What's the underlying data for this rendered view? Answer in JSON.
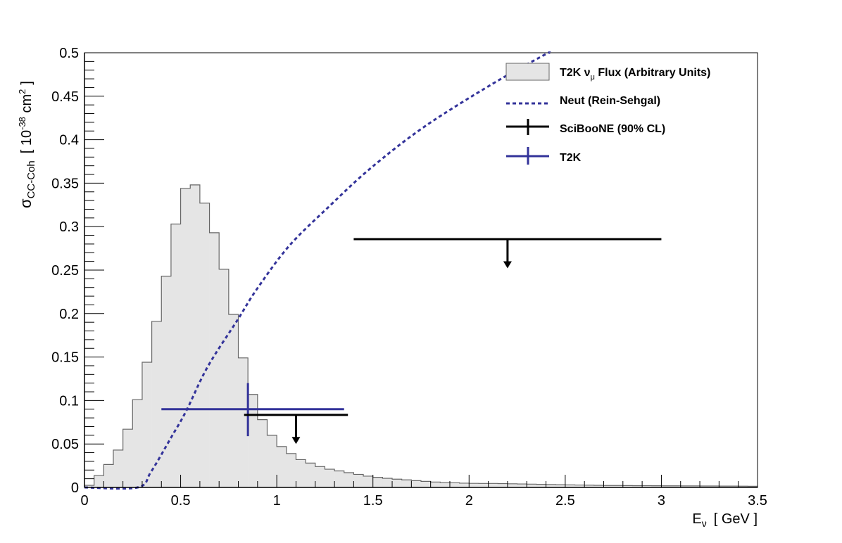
{
  "chart_data": {
    "type": "histogram+line+errorbars",
    "xlim": [
      0,
      3.5
    ],
    "ylim": [
      0,
      0.5
    ],
    "xticks": [
      "0",
      "0.5",
      "1",
      "1.5",
      "2",
      "2.5",
      "3",
      "3.5"
    ],
    "yticks": [
      "0",
      "0.05",
      "0.1",
      "0.15",
      "0.2",
      "0.25",
      "0.3",
      "0.35",
      "0.4",
      "0.45",
      "0.5"
    ],
    "xlabel": {
      "main": "E",
      "sub": "ν",
      "unit": "[ GeV ]"
    },
    "ylabel": {
      "main": "σ",
      "sub": "CC-Coh",
      "open": "[ 10",
      "exp": "-38",
      "unit": " cm",
      "unit_exp": "2",
      "close": "]"
    },
    "grid": false,
    "legend_position": "top-right",
    "flux_histogram": {
      "name": "T2K ν_μ Flux (Arbitrary Units)",
      "bin_width": 0.05,
      "bin_start": 0,
      "values": [
        0.0024,
        0.0137,
        0.0264,
        0.043,
        0.067,
        0.101,
        0.144,
        0.191,
        0.243,
        0.303,
        0.344,
        0.348,
        0.327,
        0.293,
        0.251,
        0.199,
        0.149,
        0.107,
        0.078,
        0.06,
        0.047,
        0.039,
        0.032,
        0.028,
        0.024,
        0.021,
        0.019,
        0.017,
        0.015,
        0.013,
        0.0116,
        0.0105,
        0.0095,
        0.0087,
        0.0078,
        0.007,
        0.0062,
        0.0056,
        0.0054,
        0.0049,
        0.0047,
        0.0046,
        0.0046,
        0.0044,
        0.0042,
        0.004,
        0.0038,
        0.0036,
        0.0034,
        0.0032,
        0.003,
        0.0028,
        0.0026,
        0.0024,
        0.0022,
        0.0022,
        0.0021,
        0.002,
        0.002,
        0.0019,
        0.0018,
        0.0018,
        0.0017,
        0.0017,
        0.0016,
        0.0016,
        0.0015,
        0.0015,
        0.0014,
        0.0013
      ]
    },
    "neut_curve": {
      "name": "Neut (Rein-Sehgal)",
      "x": [
        0.0,
        0.276,
        0.346,
        0.452,
        0.529,
        0.641,
        0.797,
        0.896,
        1.065,
        1.276,
        1.487,
        1.768,
        2.12,
        2.387,
        2.42
      ],
      "y": [
        0.0,
        0.0,
        0.018,
        0.058,
        0.088,
        0.139,
        0.193,
        0.228,
        0.278,
        0.324,
        0.367,
        0.415,
        0.464,
        0.497,
        0.5
      ]
    },
    "sciboone": {
      "name": "SciBooNE (90% CL)",
      "limits": [
        {
          "x": 1.1,
          "xlow": 0.83,
          "xhigh": 1.37,
          "y": 0.0834,
          "arrow_to": 0.05
        },
        {
          "x": 2.2,
          "xlow": 1.4,
          "xhigh": 3.0,
          "y": 0.2856,
          "arrow_to": 0.252
        }
      ]
    },
    "t2k": {
      "name": "T2K",
      "x": 0.85,
      "xlow": 0.4,
      "xhigh": 1.35,
      "y": 0.09,
      "ylow": 0.059,
      "yhigh": 0.12
    },
    "legend": {
      "flux_main": "T2K ν",
      "flux_sub": "μ",
      "flux_rest": " Flux (Arbitrary Units)",
      "neut": "Neut (Rein-Sehgal)",
      "sciboone": "SciBooNE (90% CL)",
      "t2k": "T2K"
    },
    "colors": {
      "flux_fill": "#e5e5e5",
      "flux_line": "#666666",
      "neut": "#33339a",
      "sciboone": "#000000",
      "t2k": "#33339a"
    }
  }
}
